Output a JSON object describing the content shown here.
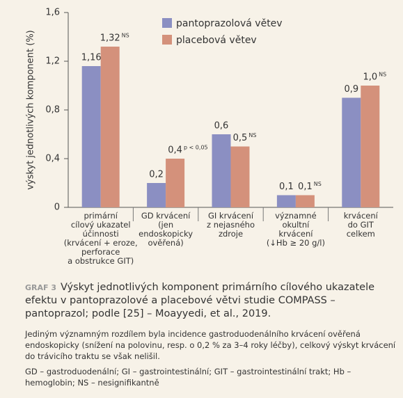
{
  "chart_data": {
    "type": "bar",
    "ylabel": "výskyt jednotlivých komponent (%)",
    "categories": [
      "primární\ncílový ukazatel\núčinnosti\n(krvácení + eroze,\nperforace\na obstrukce GIT)",
      "GD krvácení\n(jen\nendoskopicky\nověřená)",
      "GI krvácení\nz nejasného\nzdroje",
      "významné\nokultní\nkrvácení\n(↓Hb ≥ 20 g/l)",
      "krvácení\ndo GIT\ncelkem"
    ],
    "series": [
      {
        "name": "pantoprazolová větev",
        "color": "#8b8fc2",
        "values": [
          1.16,
          0.2,
          0.6,
          0.1,
          0.9
        ],
        "value_labels": [
          "1,16",
          "0,2",
          "0,6",
          "0,1",
          "0,9"
        ]
      },
      {
        "name": "placebová větev",
        "color": "#d4917b",
        "values": [
          1.32,
          0.4,
          0.5,
          0.1,
          1.0
        ],
        "value_labels": [
          "1,32",
          "0,4",
          "0,5",
          "0,1",
          "1,0"
        ],
        "notes": [
          "NS",
          "p < 0,05",
          "NS",
          "NS",
          "NS"
        ]
      }
    ],
    "ylim": [
      0,
      1.6
    ],
    "yticks": [
      0,
      {
        "value": 0.4,
        "label": "0,4"
      },
      {
        "value": 0.8,
        "label": "0,8"
      },
      {
        "value": 1.2,
        "label": "1,2"
      },
      {
        "value": 1.6,
        "label": "1,6"
      }
    ]
  },
  "caption": {
    "label": "GRAF 3",
    "title": "Výskyt jednotlivých komponent primárního cílového ukazatele efektu v pantoprazolové a placebové větvi studie COMPASS – pantoprazol; podle [25] – Moayyedi, et al., 2019.",
    "text": "Jediným významným rozdílem byla incidence gastroduodenálního krvácení ověřená endoskopicky (snížení na polovinu, resp. o 0,2 % za 3–4 roky léčby), celkový výskyt krvácení do trávicího traktu se však nelišil.",
    "abbreviations": "GD – gastroduodenální; GI – gastrointestinální; GIT – gastrointestinální trakt; Hb – hemoglobin; NS – nesignifikantně"
  }
}
